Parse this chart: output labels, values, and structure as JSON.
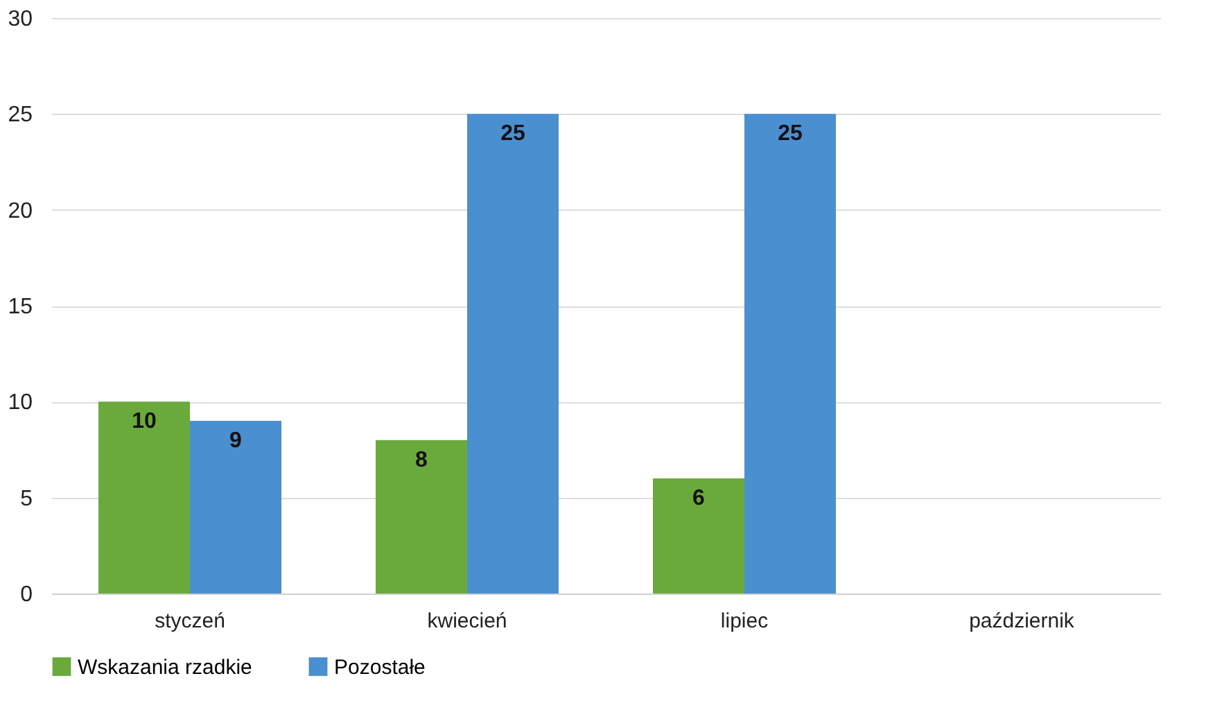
{
  "chart_data": {
    "type": "bar",
    "categories": [
      "styczeń",
      "kwiecień",
      "lipiec",
      "październik"
    ],
    "series": [
      {
        "name": "Wskazania rzadkie",
        "color": "#6aaa3c",
        "values": [
          10,
          8,
          6,
          null
        ]
      },
      {
        "name": "Pozostałe",
        "color": "#4a8fd0",
        "values": [
          9,
          25,
          25,
          null
        ]
      }
    ],
    "ylim": [
      0,
      30
    ],
    "yticks": [
      0,
      5,
      10,
      15,
      20,
      25,
      30
    ],
    "grid": "y",
    "legend": "bottom",
    "data_labels": true
  }
}
